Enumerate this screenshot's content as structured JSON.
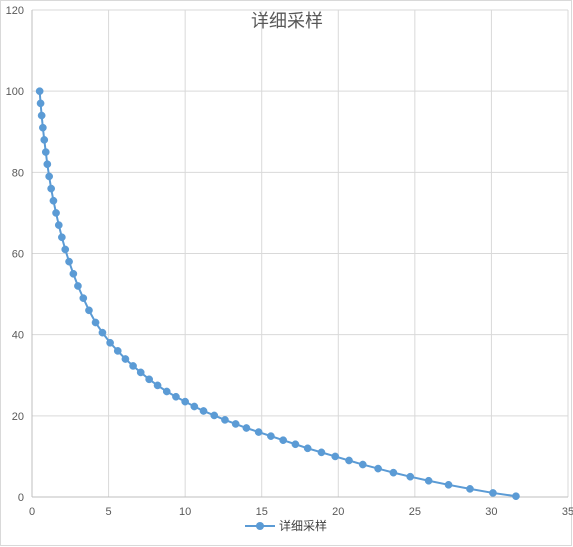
{
  "chart_data": {
    "type": "scatter",
    "title": "详细采样",
    "xlabel": "",
    "ylabel": "",
    "xlim": [
      0,
      35
    ],
    "ylim": [
      0,
      120
    ],
    "x_ticks": [
      "0",
      "5",
      "10",
      "15",
      "20",
      "25",
      "30",
      "35"
    ],
    "y_ticks": [
      "0",
      "20",
      "40",
      "60",
      "80",
      "100",
      "120"
    ],
    "grid": true,
    "legend_position": "bottom",
    "colors": {
      "series": "#5b9bd5",
      "grid": "#d9d9d9",
      "axis": "#bfbfbf"
    },
    "series": [
      {
        "name": "详细采样",
        "marker": "circle",
        "line": true,
        "points": [
          [
            0.5,
            100
          ],
          [
            0.56,
            97
          ],
          [
            0.63,
            94
          ],
          [
            0.71,
            91
          ],
          [
            0.8,
            88
          ],
          [
            0.9,
            85
          ],
          [
            1.0,
            82
          ],
          [
            1.12,
            79
          ],
          [
            1.25,
            76
          ],
          [
            1.4,
            73
          ],
          [
            1.57,
            70
          ],
          [
            1.75,
            67
          ],
          [
            1.95,
            64
          ],
          [
            2.17,
            61
          ],
          [
            2.42,
            58
          ],
          [
            2.7,
            55
          ],
          [
            3.0,
            52
          ],
          [
            3.35,
            49
          ],
          [
            3.72,
            46
          ],
          [
            4.15,
            43
          ],
          [
            4.6,
            40.5
          ],
          [
            5.1,
            38
          ],
          [
            5.6,
            36
          ],
          [
            6.1,
            34
          ],
          [
            6.6,
            32.3
          ],
          [
            7.1,
            30.7
          ],
          [
            7.65,
            29
          ],
          [
            8.2,
            27.5
          ],
          [
            8.8,
            26
          ],
          [
            9.4,
            24.7
          ],
          [
            10.0,
            23.5
          ],
          [
            10.6,
            22.3
          ],
          [
            11.2,
            21.2
          ],
          [
            11.9,
            20.1
          ],
          [
            12.6,
            19
          ],
          [
            13.3,
            18
          ],
          [
            14.0,
            17
          ],
          [
            14.8,
            16
          ],
          [
            15.6,
            15
          ],
          [
            16.4,
            14
          ],
          [
            17.2,
            13
          ],
          [
            18.0,
            12
          ],
          [
            18.9,
            11
          ],
          [
            19.8,
            10
          ],
          [
            20.7,
            9
          ],
          [
            21.6,
            8
          ],
          [
            22.6,
            7
          ],
          [
            23.6,
            6
          ],
          [
            24.7,
            5
          ],
          [
            25.9,
            4
          ],
          [
            27.2,
            3
          ],
          [
            28.6,
            2
          ],
          [
            30.1,
            1
          ],
          [
            31.6,
            0.2
          ]
        ]
      }
    ]
  }
}
